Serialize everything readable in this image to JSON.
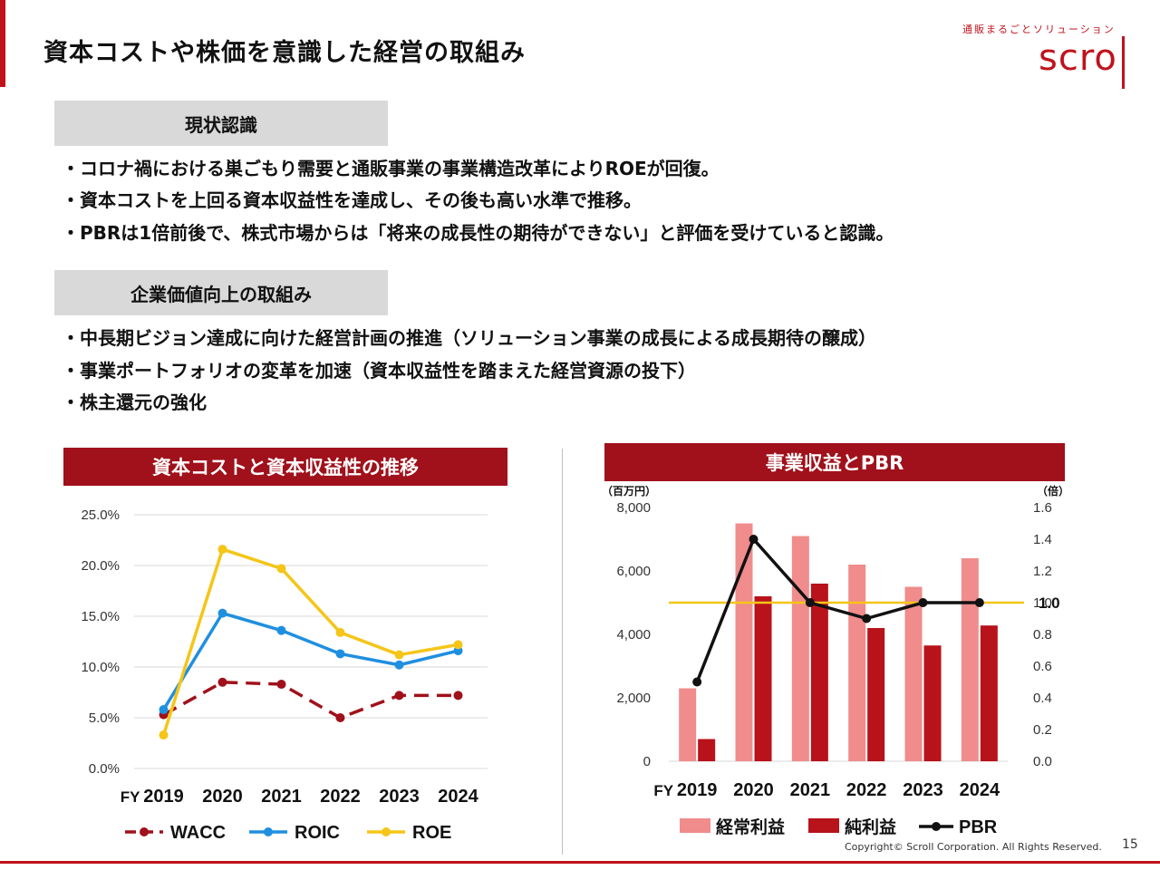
{
  "header": {
    "title": "資本コストや株価を意識した経営の取組み",
    "brand_tagline": "通販まるごとソリューション",
    "brand_logo": "scro"
  },
  "sections": [
    {
      "heading": "現状認識",
      "bullets": [
        "・コロナ禍における巣ごもり需要と通販事業の事業構造改革によりROEが回復。",
        "・資本コストを上回る資本収益性を達成し、その後も高い水準で推移。",
        "・PBRは1倍前後で、株式市場からは「将来の成長性の期待ができない」と評価を受けていると認識。"
      ]
    },
    {
      "heading": "企業価値向上の取組み",
      "bullets": [
        "・中長期ビジョン達成に向けた経営計画の推進（ソリューション事業の成長による成長期待の醸成）",
        "・事業ポートフォリオの変革を加速（資本収益性を踏まえた経営資源の投下）",
        "・株主還元の強化"
      ]
    }
  ],
  "chart_data": [
    {
      "type": "line",
      "title": "資本コストと資本収益性の推移",
      "categories": [
        "2019",
        "2020",
        "2021",
        "2022",
        "2023",
        "2024"
      ],
      "x_prefix": "FY",
      "y_ticks": [
        "0.0%",
        "5.0%",
        "10.0%",
        "15.0%",
        "20.0%",
        "25.0%"
      ],
      "ylim": [
        0,
        25
      ],
      "series": [
        {
          "name": "WACC",
          "values": [
            5.3,
            8.5,
            8.3,
            5.0,
            7.2,
            7.2
          ],
          "color": "#a0111b",
          "dashed": true
        },
        {
          "name": "ROIC",
          "values": [
            5.8,
            15.3,
            13.6,
            11.3,
            10.2,
            11.6
          ],
          "color": "#1f8fe0",
          "dashed": false
        },
        {
          "name": "ROE",
          "values": [
            3.3,
            21.6,
            19.7,
            13.4,
            11.2,
            12.2
          ],
          "color": "#f5c518",
          "dashed": false
        }
      ],
      "legend_position": "bottom"
    },
    {
      "type": "bar",
      "title": "事業収益とPBR",
      "categories": [
        "2019",
        "2020",
        "2021",
        "2022",
        "2023",
        "2024"
      ],
      "x_prefix": "FY",
      "y_left_label": "（百万円）",
      "y_right_label": "（倍）",
      "y_left_ticks": [
        "0",
        "2,000",
        "4,000",
        "6,000",
        "8,000"
      ],
      "y_right_ticks": [
        "0.0",
        "0.2",
        "0.4",
        "0.6",
        "0.8",
        "1.0",
        "1.2",
        "1.4",
        "1.6"
      ],
      "ylim_left": [
        0,
        8000
      ],
      "ylim_right": [
        0,
        1.6
      ],
      "series": [
        {
          "name": "経常利益",
          "axis": "left",
          "kind": "bar",
          "values": [
            2300,
            7500,
            7100,
            6200,
            5500,
            6400
          ],
          "color": "#f08c8c"
        },
        {
          "name": "純利益",
          "axis": "left",
          "kind": "bar",
          "values": [
            700,
            5200,
            5600,
            4200,
            3650,
            4280
          ],
          "color": "#b8121b"
        },
        {
          "name": "PBR",
          "axis": "right",
          "kind": "line",
          "values": [
            0.5,
            1.4,
            1.0,
            0.9,
            1.0,
            1.0
          ],
          "color": "#111111"
        }
      ],
      "reference_line": {
        "value": 1.0,
        "label": "1.0",
        "color": "#f5c518"
      },
      "legend_position": "bottom"
    }
  ],
  "footer": {
    "copyright": "Copyright© Scroll Corporation. All Rights Reserved.",
    "page": "15"
  }
}
